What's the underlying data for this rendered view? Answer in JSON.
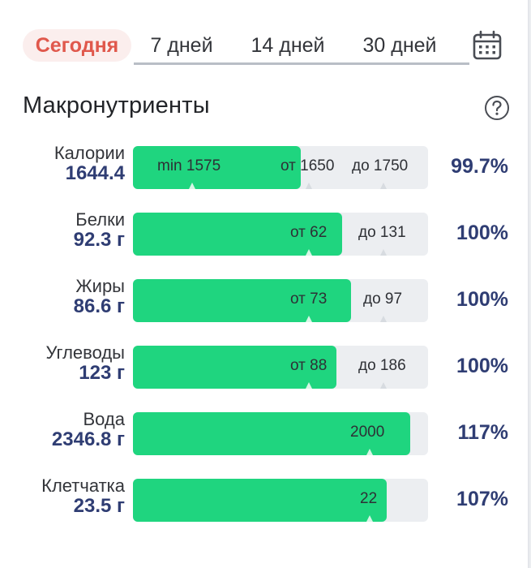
{
  "tabs": [
    {
      "label": "Сегодня",
      "active": true
    },
    {
      "label": "7 дней"
    },
    {
      "label": "14 дней"
    },
    {
      "label": "30 дней"
    }
  ],
  "calendar_icon": "calendar-icon",
  "help_icon": "question-circle-icon",
  "section_title": "Макронутриенты",
  "colors": {
    "accent": "#e0584c",
    "bar_fill": "#1fd57f",
    "track": "#eceef1",
    "value_text": "#2f3d73"
  },
  "rows": [
    {
      "label": "Калории",
      "amount": "1644.4",
      "fill_fraction": 0.57,
      "markers": [
        "min 1575",
        "от 1650",
        "до 1750"
      ],
      "percent": "99.7%"
    },
    {
      "label": "Белки",
      "amount": "92.3 г",
      "fill_fraction": 0.71,
      "markers": [
        "от 62",
        "до 131"
      ],
      "percent": "100%"
    },
    {
      "label": "Жиры",
      "amount": "86.6 г",
      "fill_fraction": 0.74,
      "markers": [
        "от 73",
        "до 97"
      ],
      "percent": "100%"
    },
    {
      "label": "Углеводы",
      "amount": "123 г",
      "fill_fraction": 0.69,
      "markers": [
        "от 88",
        "до 186"
      ],
      "percent": "100%"
    },
    {
      "label": "Вода",
      "amount": "2346.8 г",
      "fill_fraction": 0.94,
      "markers": [
        "2000"
      ],
      "percent": "117%"
    },
    {
      "label": "Клетчатка",
      "amount": "23.5 г",
      "fill_fraction": 0.86,
      "markers": [
        "22"
      ],
      "percent": "107%"
    }
  ]
}
